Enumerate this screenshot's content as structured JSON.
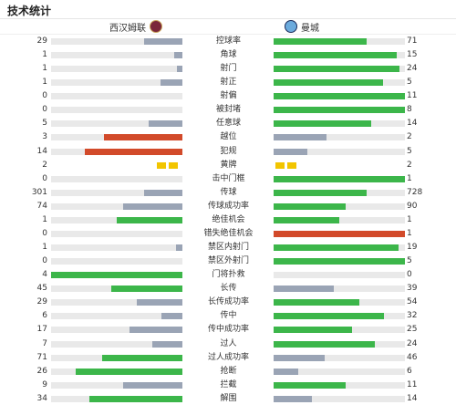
{
  "header": {
    "title": "技术统计"
  },
  "teams": {
    "home": {
      "name": "西汉姆联",
      "badge_icon": "west-ham-crest-icon"
    },
    "away": {
      "name": "曼城",
      "badge_icon": "man-city-crest-icon"
    }
  },
  "colors": {
    "win": "#3cb64a",
    "lose": "#9aa4b5",
    "bad": "#d24a2a",
    "card": "#f2c500",
    "track": "#e9e9e9"
  },
  "stats": [
    {
      "label": "控球率",
      "home": "29",
      "away": "71",
      "home_pct": 29,
      "away_pct": 71,
      "home_color": "lose",
      "away_color": "win"
    },
    {
      "label": "角球",
      "home": "1",
      "away": "15",
      "home_pct": 6,
      "away_pct": 94,
      "home_color": "lose",
      "away_color": "win"
    },
    {
      "label": "射门",
      "home": "1",
      "away": "24",
      "home_pct": 4,
      "away_pct": 96,
      "home_color": "lose",
      "away_color": "win"
    },
    {
      "label": "射正",
      "home": "1",
      "away": "5",
      "home_pct": 17,
      "away_pct": 83,
      "home_color": "lose",
      "away_color": "win"
    },
    {
      "label": "射偏",
      "home": "0",
      "away": "11",
      "home_pct": 0,
      "away_pct": 100,
      "home_color": "lose",
      "away_color": "win"
    },
    {
      "label": "被封堵",
      "home": "0",
      "away": "8",
      "home_pct": 0,
      "away_pct": 100,
      "home_color": "lose",
      "away_color": "win"
    },
    {
      "label": "任意球",
      "home": "5",
      "away": "14",
      "home_pct": 26,
      "away_pct": 74,
      "home_color": "lose",
      "away_color": "win"
    },
    {
      "label": "越位",
      "home": "3",
      "away": "2",
      "home_pct": 60,
      "away_pct": 40,
      "home_color": "bad",
      "away_color": "lose"
    },
    {
      "label": "犯规",
      "home": "14",
      "away": "5",
      "home_pct": 74,
      "away_pct": 26,
      "home_color": "bad",
      "away_color": "lose"
    },
    {
      "label": "黄牌",
      "home": "2",
      "away": "2",
      "home_cards": 2,
      "away_cards": 2
    },
    {
      "label": "击中门框",
      "home": "0",
      "away": "1",
      "home_pct": 0,
      "away_pct": 100,
      "home_color": "lose",
      "away_color": "win"
    },
    {
      "label": "传球",
      "home": "301",
      "away": "728",
      "home_pct": 29,
      "away_pct": 71,
      "home_color": "lose",
      "away_color": "win"
    },
    {
      "label": "传球成功率",
      "home": "74",
      "away": "90",
      "home_pct": 45,
      "away_pct": 55,
      "home_color": "lose",
      "away_color": "win"
    },
    {
      "label": "绝佳机会",
      "home": "1",
      "away": "1",
      "home_pct": 50,
      "away_pct": 50,
      "home_color": "win",
      "away_color": "win"
    },
    {
      "label": "错失绝佳机会",
      "home": "0",
      "away": "1",
      "home_pct": 0,
      "away_pct": 100,
      "home_color": "lose",
      "away_color": "bad"
    },
    {
      "label": "禁区内射门",
      "home": "1",
      "away": "19",
      "home_pct": 5,
      "away_pct": 95,
      "home_color": "lose",
      "away_color": "win"
    },
    {
      "label": "禁区外射门",
      "home": "0",
      "away": "5",
      "home_pct": 0,
      "away_pct": 100,
      "home_color": "lose",
      "away_color": "win"
    },
    {
      "label": "门将扑救",
      "home": "4",
      "away": "0",
      "home_pct": 100,
      "away_pct": 0,
      "home_color": "win",
      "away_color": "lose"
    },
    {
      "label": "长传",
      "home": "45",
      "away": "39",
      "home_pct": 54,
      "away_pct": 46,
      "home_color": "win",
      "away_color": "lose"
    },
    {
      "label": "长传成功率",
      "home": "29",
      "away": "54",
      "home_pct": 35,
      "away_pct": 65,
      "home_color": "lose",
      "away_color": "win"
    },
    {
      "label": "传中",
      "home": "6",
      "away": "32",
      "home_pct": 16,
      "away_pct": 84,
      "home_color": "lose",
      "away_color": "win"
    },
    {
      "label": "传中成功率",
      "home": "17",
      "away": "25",
      "home_pct": 40,
      "away_pct": 60,
      "home_color": "lose",
      "away_color": "win"
    },
    {
      "label": "过人",
      "home": "7",
      "away": "24",
      "home_pct": 23,
      "away_pct": 77,
      "home_color": "lose",
      "away_color": "win"
    },
    {
      "label": "过人成功率",
      "home": "71",
      "away": "46",
      "home_pct": 61,
      "away_pct": 39,
      "home_color": "win",
      "away_color": "lose"
    },
    {
      "label": "抢断",
      "home": "26",
      "away": "6",
      "home_pct": 81,
      "away_pct": 19,
      "home_color": "win",
      "away_color": "lose"
    },
    {
      "label": "拦截",
      "home": "9",
      "away": "11",
      "home_pct": 45,
      "away_pct": 55,
      "home_color": "lose",
      "away_color": "win"
    },
    {
      "label": "解围",
      "home": "34",
      "away": "14",
      "home_pct": 71,
      "away_pct": 29,
      "home_color": "win",
      "away_color": "lose"
    }
  ]
}
